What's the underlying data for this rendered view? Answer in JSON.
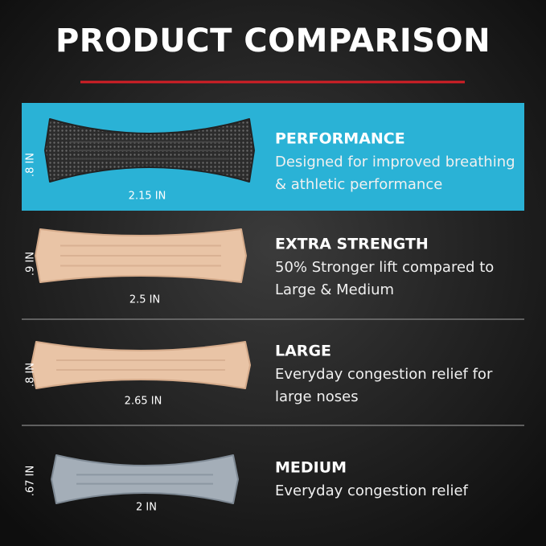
{
  "title": "PRODUCT COMPARISON",
  "rows": [
    {
      "name": "PERFORMANCE",
      "description": [
        "Designed for improved breathing",
        "& athletic performance"
      ],
      "width": "2.15 IN",
      "height": ".8 IN"
    },
    {
      "name": "EXTRA STRENGTH",
      "description": [
        "50% Stronger lift compared to",
        "Large & Medium"
      ],
      "width": "2.5 IN",
      "height": ".9 IN"
    },
    {
      "name": "LARGE",
      "description": [
        "Everyday congestion relief for",
        "large noses"
      ],
      "width": "2.65 IN",
      "height": ".8 IN"
    },
    {
      "name": "MEDIUM",
      "description": [
        "Everyday congestion relief"
      ],
      "width": "2 IN",
      "height": ".67 IN"
    }
  ]
}
